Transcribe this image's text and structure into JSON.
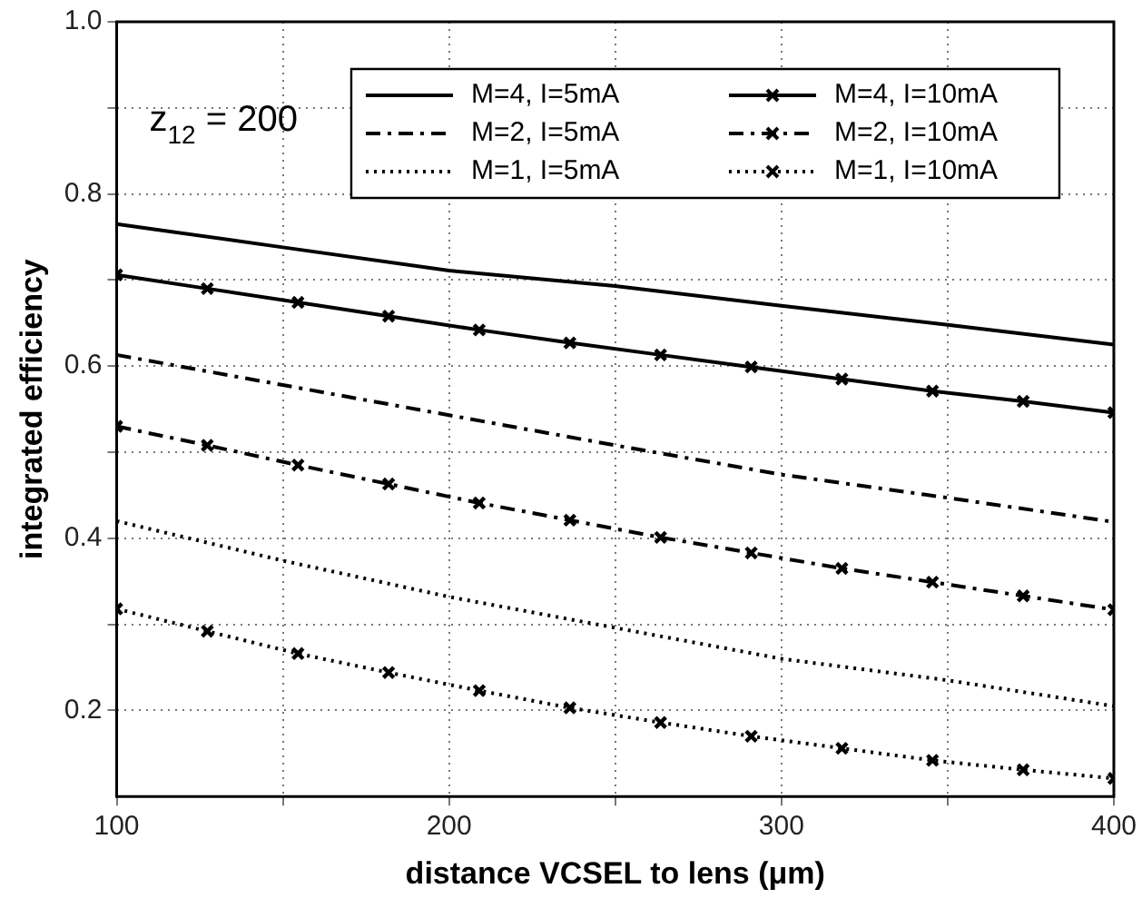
{
  "chart_data": {
    "type": "line",
    "xlabel": "distance VCSEL to lens (μm)",
    "ylabel": "integrated efficiency",
    "annotations": [
      "z$_{12}$ = 200"
    ],
    "xlim": [
      100,
      400
    ],
    "xticks": [
      100,
      {
        "value": 150,
        "label": null
      },
      200,
      {
        "value": 250,
        "label": null
      },
      300,
      {
        "value": 350,
        "label": null
      },
      400
    ],
    "ylim": [
      0.1,
      1.0
    ],
    "yticks": [
      0.2,
      {
        "value": 0.3,
        "label": null
      },
      0.4,
      {
        "value": 0.5,
        "label": null
      },
      0.6,
      {
        "value": 0.7,
        "label": null
      },
      0.8,
      {
        "value": 0.9,
        "label": null
      },
      {
        "value": 1.0,
        "label": "1.0"
      }
    ],
    "grid": true,
    "legend": "top right",
    "series": [
      {
        "name": "M=4, I=5mA",
        "color": "#000000",
        "line_style": "solid",
        "marker": "none",
        "x": [
          100,
          150,
          200,
          250,
          300,
          350,
          400
        ],
        "values": [
          0.765,
          0.738,
          0.711,
          0.693,
          0.67,
          0.648,
          0.625
        ]
      },
      {
        "name": "M=2, I=5mA",
        "color": "#000000",
        "line_style": "dashdot",
        "marker": "none",
        "x": [
          100,
          150,
          200,
          250,
          300,
          350,
          400
        ],
        "values": [
          0.613,
          0.578,
          0.543,
          0.508,
          0.474,
          0.447,
          0.419
        ]
      },
      {
        "name": "M=1, I=5mA",
        "color": "#000000",
        "line_style": "dotted",
        "marker": "none",
        "x": [
          100,
          150,
          200,
          250,
          300,
          350,
          400
        ],
        "values": [
          0.42,
          0.374,
          0.332,
          0.296,
          0.26,
          0.235,
          0.205
        ]
      },
      {
        "name": "M=4, I=10mA",
        "color": "#000000",
        "line_style": "solid",
        "marker": "cross",
        "x": [
          100,
          127.27,
          154.55,
          181.82,
          209.09,
          236.36,
          263.64,
          290.91,
          318.18,
          345.45,
          372.73,
          400
        ],
        "values": [
          0.706,
          0.69,
          0.674,
          0.658,
          0.642,
          0.627,
          0.613,
          0.599,
          0.585,
          0.571,
          0.559,
          0.546
        ]
      },
      {
        "name": "M=2, I=10mA",
        "color": "#000000",
        "line_style": "dashdot",
        "marker": "cross",
        "x": [
          100,
          127.27,
          154.55,
          181.82,
          209.09,
          236.36,
          263.64,
          290.91,
          318.18,
          345.45,
          372.73,
          400
        ],
        "values": [
          0.53,
          0.508,
          0.485,
          0.463,
          0.441,
          0.421,
          0.401,
          0.383,
          0.365,
          0.349,
          0.333,
          0.317
        ]
      },
      {
        "name": "M=1, I=10mA",
        "color": "#000000",
        "line_style": "dotted",
        "marker": "cross",
        "x": [
          100,
          127.27,
          154.55,
          181.82,
          209.09,
          236.36,
          263.64,
          290.91,
          318.18,
          345.45,
          372.73,
          400
        ],
        "values": [
          0.318,
          0.292,
          0.266,
          0.244,
          0.223,
          0.203,
          0.186,
          0.17,
          0.156,
          0.142,
          0.131,
          0.121
        ]
      }
    ]
  }
}
